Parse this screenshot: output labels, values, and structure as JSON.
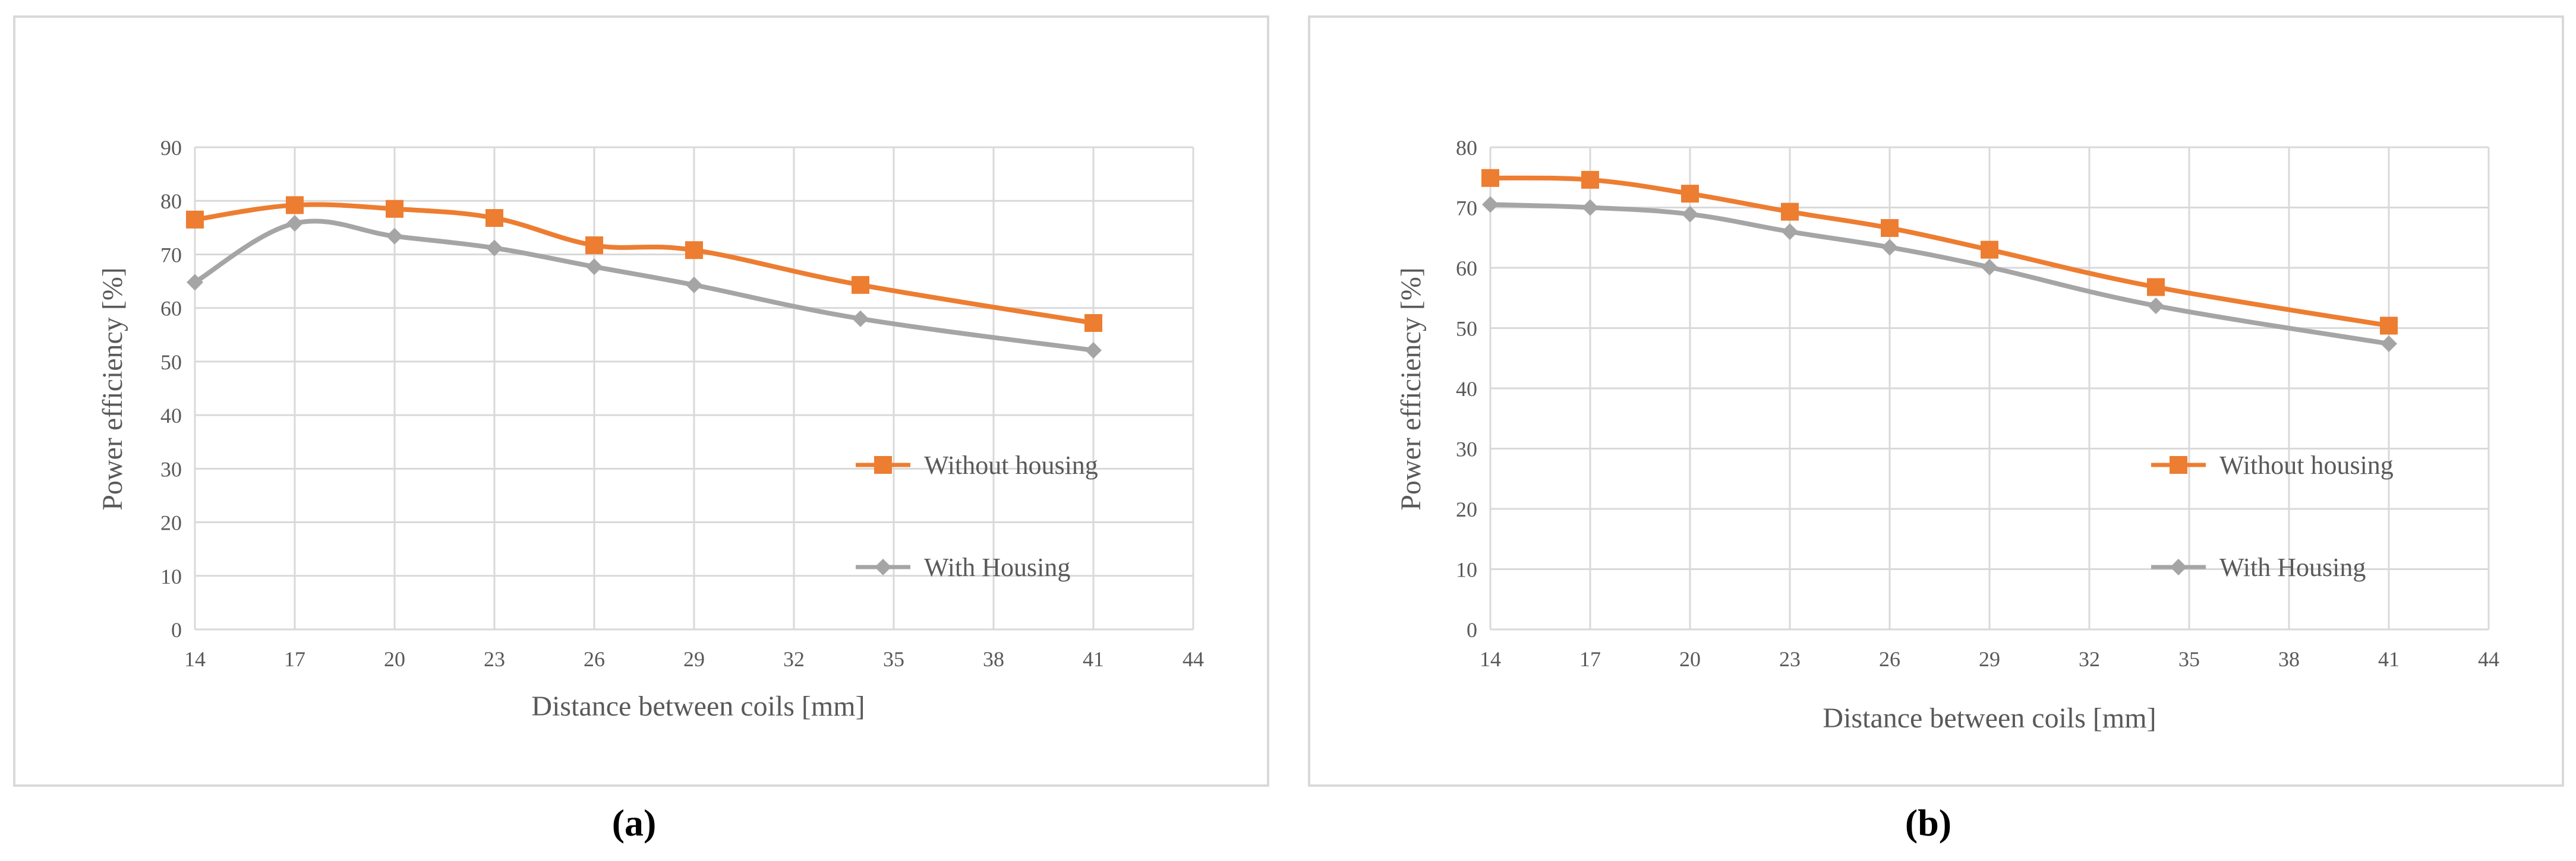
{
  "chart_data": [
    {
      "panel": "(a)",
      "type": "line",
      "xlabel": "Distance between coils [mm]",
      "ylabel": "Power efficiency [%]",
      "xlim": [
        14,
        44
      ],
      "ylim": [
        0,
        90
      ],
      "xticks": [
        14,
        17,
        20,
        23,
        26,
        29,
        32,
        35,
        38,
        41,
        44
      ],
      "yticks": [
        0,
        10,
        20,
        30,
        40,
        50,
        60,
        70,
        80,
        90
      ],
      "series": [
        {
          "name": "Without housing",
          "color": "#ED7D31",
          "marker": "square",
          "x": [
            14,
            17,
            20,
            23,
            26,
            29,
            34,
            41
          ],
          "y": [
            76.5,
            79.2,
            78.5,
            76.8,
            71.7,
            70.8,
            64.3,
            57.2
          ]
        },
        {
          "name": "With Housing",
          "color": "#A5A5A5",
          "marker": "diamond",
          "x": [
            14,
            17,
            20,
            23,
            26,
            29,
            34,
            41
          ],
          "y": [
            64.8,
            75.8,
            73.4,
            71.2,
            67.7,
            64.3,
            58.0,
            52.1
          ]
        }
      ]
    },
    {
      "panel": "(b)",
      "type": "line",
      "xlabel": "Distance between coils [mm]",
      "ylabel": "Power efficiency [%]",
      "xlim": [
        14,
        44
      ],
      "ylim": [
        0,
        80
      ],
      "xticks": [
        14,
        17,
        20,
        23,
        26,
        29,
        32,
        35,
        38,
        41,
        44
      ],
      "yticks": [
        0,
        10,
        20,
        30,
        40,
        50,
        60,
        70,
        80
      ],
      "series": [
        {
          "name": "Without housing",
          "color": "#ED7D31",
          "marker": "square",
          "x": [
            14,
            17,
            20,
            23,
            26,
            29,
            34,
            41
          ],
          "y": [
            74.9,
            74.6,
            72.3,
            69.3,
            66.6,
            63.0,
            56.8,
            50.4
          ]
        },
        {
          "name": "With Housing",
          "color": "#A5A5A5",
          "marker": "diamond",
          "x": [
            14,
            17,
            20,
            23,
            26,
            29,
            34,
            41
          ],
          "y": [
            70.5,
            70.0,
            68.9,
            66.0,
            63.4,
            60.1,
            53.7,
            47.4
          ]
        }
      ]
    }
  ]
}
